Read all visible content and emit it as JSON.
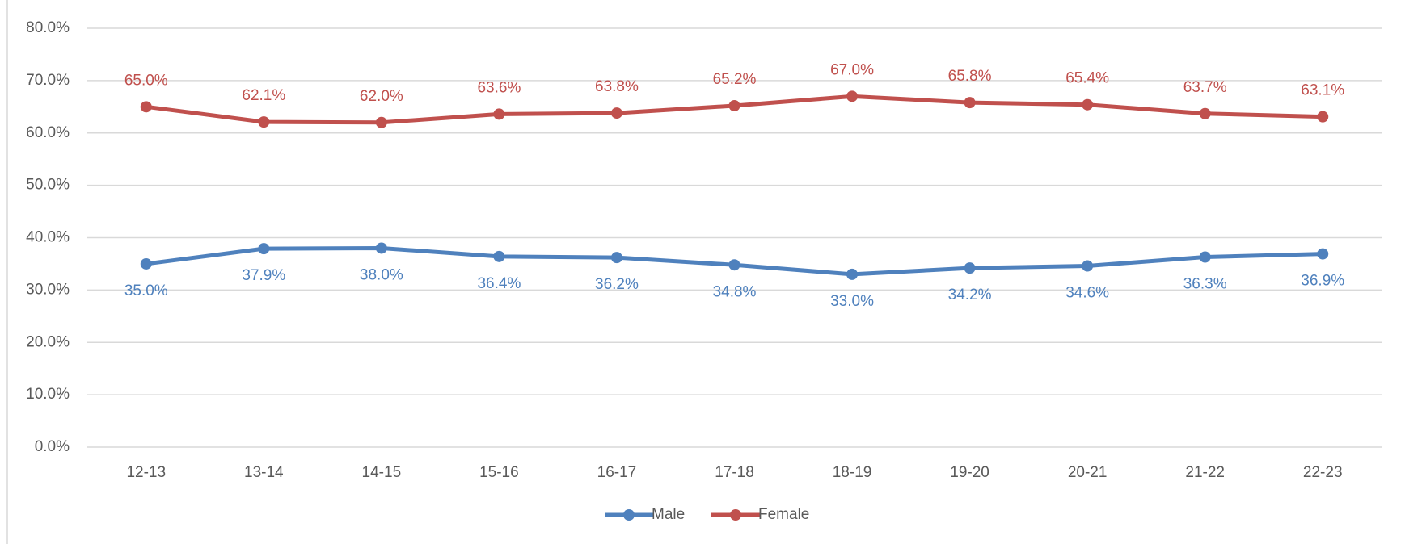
{
  "chart_data": {
    "type": "line",
    "categories": [
      "12-13",
      "13-14",
      "14-15",
      "15-16",
      "16-17",
      "17-18",
      "18-19",
      "19-20",
      "20-21",
      "21-22",
      "22-23"
    ],
    "series": [
      {
        "name": "Male",
        "color": "#4f81bd",
        "values": [
          35.0,
          37.9,
          38.0,
          36.4,
          36.2,
          34.8,
          33.0,
          34.2,
          34.6,
          36.3,
          36.9
        ],
        "value_labels": [
          "35.0%",
          "37.9%",
          "38.0%",
          "36.4%",
          "36.2%",
          "34.8%",
          "33.0%",
          "34.2%",
          "34.6%",
          "36.3%",
          "36.9%"
        ]
      },
      {
        "name": "Female",
        "color": "#c0504d",
        "values": [
          65.0,
          62.1,
          62.0,
          63.6,
          63.8,
          65.2,
          67.0,
          65.8,
          65.4,
          63.7,
          63.1
        ],
        "value_labels": [
          "65.0%",
          "62.1%",
          "62.0%",
          "63.6%",
          "63.8%",
          "65.2%",
          "67.0%",
          "65.8%",
          "65.4%",
          "63.7%",
          "63.1%"
        ]
      }
    ],
    "ylim": [
      0,
      80
    ],
    "yticks": [
      {
        "value": 0,
        "label": "0.0%"
      },
      {
        "value": 10,
        "label": "10.0%"
      },
      {
        "value": 20,
        "label": "20.0%"
      },
      {
        "value": 30,
        "label": "30.0%"
      },
      {
        "value": 40,
        "label": "40.0%"
      },
      {
        "value": 50,
        "label": "50.0%"
      },
      {
        "value": 60,
        "label": "60.0%"
      },
      {
        "value": 70,
        "label": "70.0%"
      },
      {
        "value": 80,
        "label": "80.0%"
      }
    ],
    "grid": true,
    "legend": "bottom"
  }
}
